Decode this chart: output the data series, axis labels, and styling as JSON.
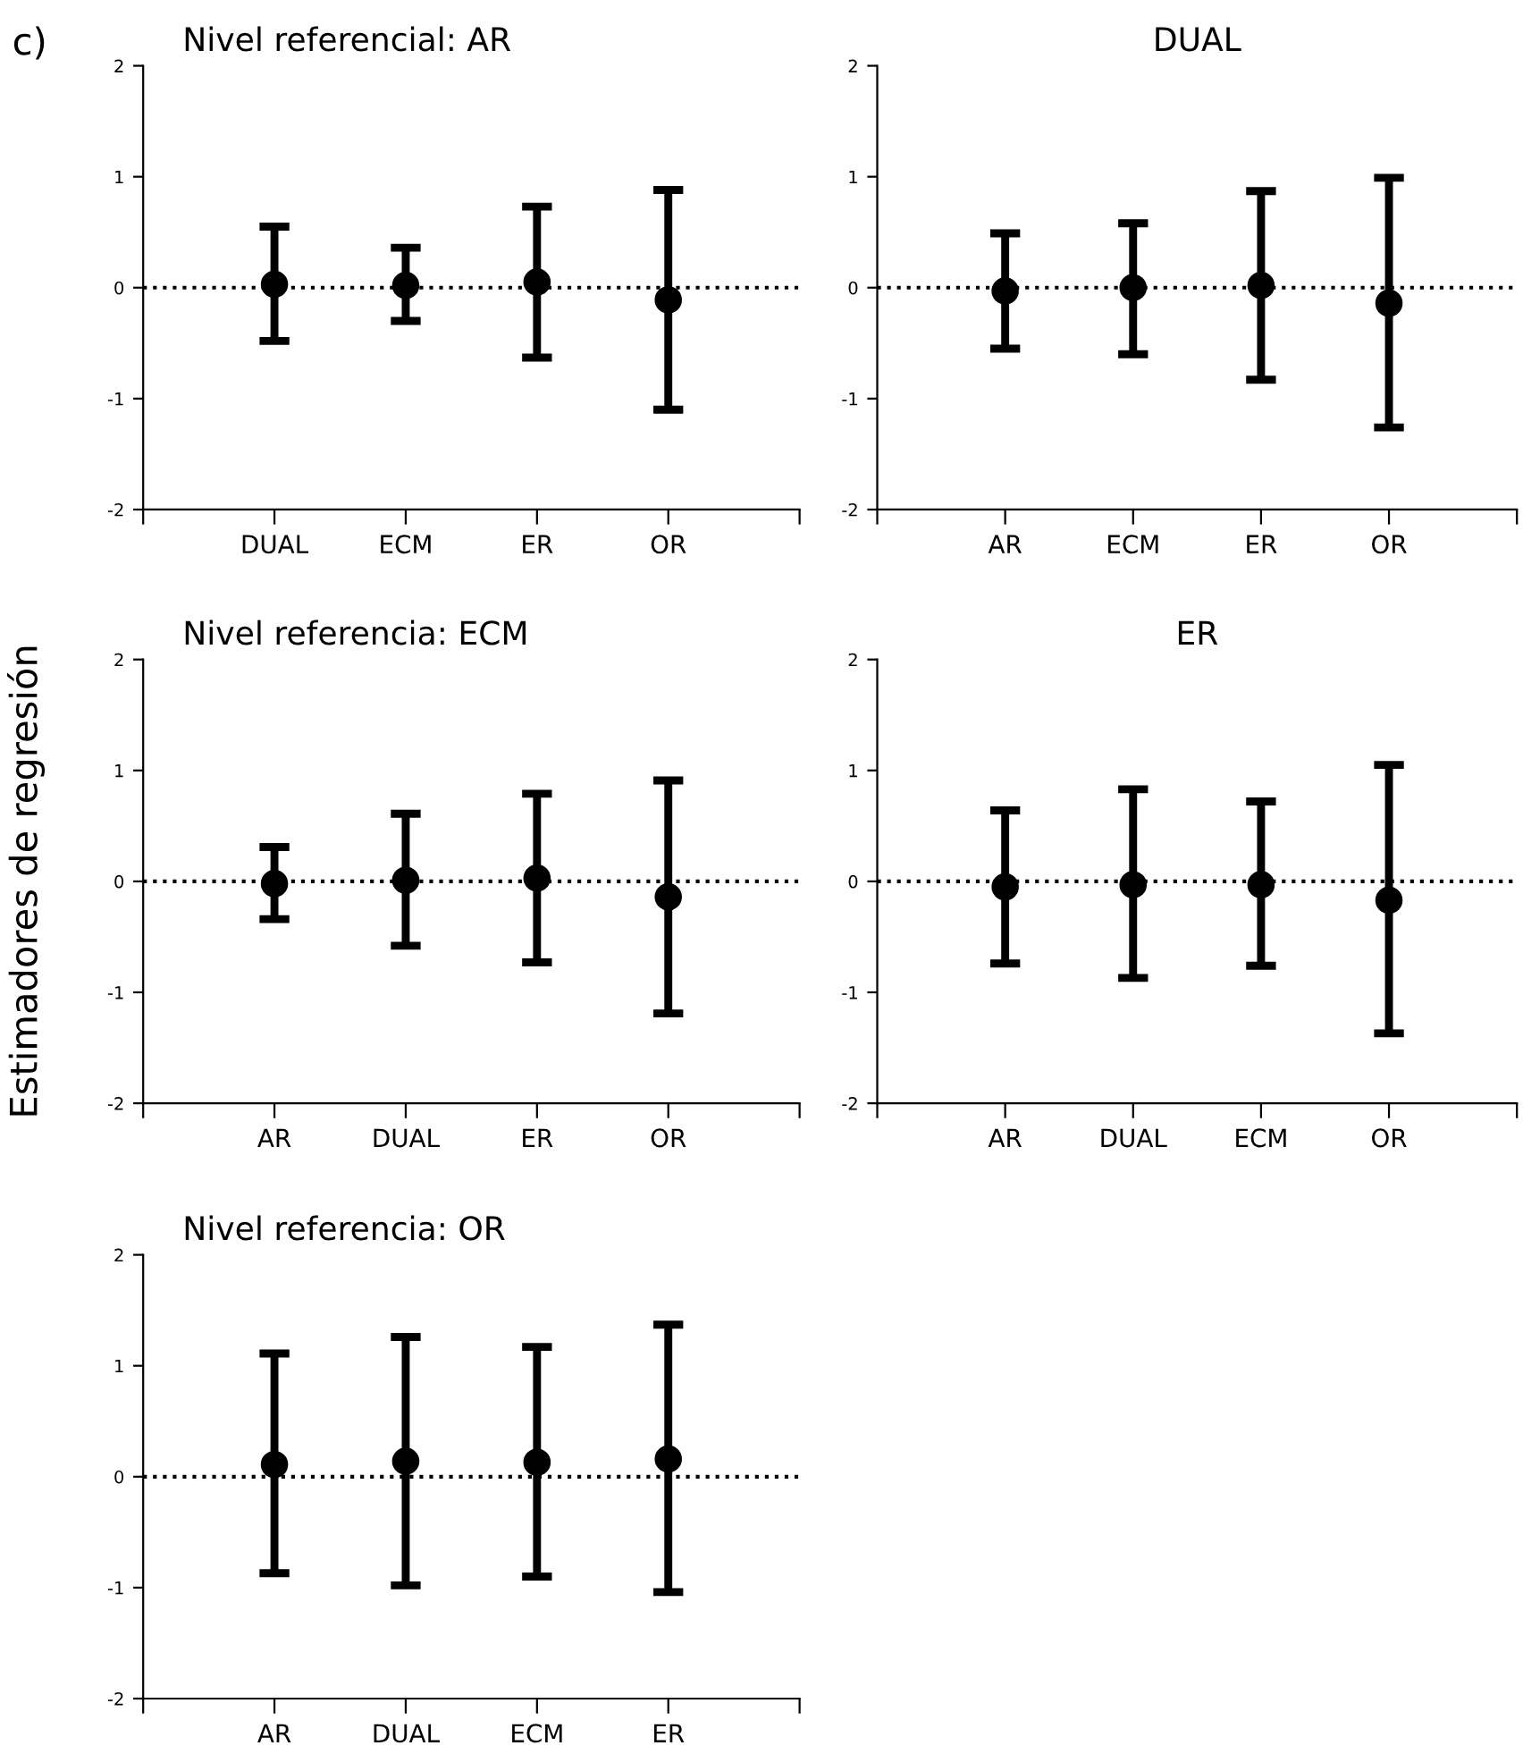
{
  "chart_data": [
    {
      "type": "scatter",
      "title": "Nivel referencial: AR",
      "annotations": [
        "c)"
      ],
      "categories": [
        "DUAL",
        "ECM",
        "ER",
        "OR"
      ],
      "values": [
        0.03,
        0.02,
        0.05,
        -0.11
      ],
      "errors": [
        [
          -0.48,
          0.55
        ],
        [
          -0.3,
          0.36
        ],
        [
          -0.63,
          0.73
        ],
        [
          -1.1,
          0.88
        ]
      ],
      "color": "#000000",
      "marker": "circle",
      "ylim": [
        -2,
        2
      ],
      "yticks": [
        -2,
        -1,
        0,
        1,
        2
      ],
      "ref_lines": [
        {
          "axis": "y",
          "value": 0,
          "line_style": "dotted",
          "color": "#000000"
        }
      ],
      "grid": false,
      "legend": false
    },
    {
      "type": "scatter",
      "title": "DUAL",
      "categories": [
        "AR",
        "ECM",
        "ER",
        "OR"
      ],
      "values": [
        -0.03,
        0.0,
        0.02,
        -0.14
      ],
      "errors": [
        [
          -0.55,
          0.49
        ],
        [
          -0.6,
          0.58
        ],
        [
          -0.83,
          0.87
        ],
        [
          -1.26,
          0.99
        ]
      ],
      "color": "#000000",
      "marker": "circle",
      "ylim": [
        -2,
        2
      ],
      "yticks": [
        -2,
        -1,
        0,
        1,
        2
      ],
      "ref_lines": [
        {
          "axis": "y",
          "value": 0,
          "line_style": "dotted",
          "color": "#000000"
        }
      ],
      "grid": false,
      "legend": false
    },
    {
      "type": "scatter",
      "title": "Nivel referencia: ECM",
      "ylabel": "Estimadores de regresión",
      "categories": [
        "AR",
        "DUAL",
        "ER",
        "OR"
      ],
      "values": [
        -0.02,
        0.01,
        0.03,
        -0.14
      ],
      "errors": [
        [
          -0.34,
          0.31
        ],
        [
          -0.58,
          0.61
        ],
        [
          -0.73,
          0.79
        ],
        [
          -1.19,
          0.91
        ]
      ],
      "color": "#000000",
      "marker": "circle",
      "ylim": [
        -2,
        2
      ],
      "yticks": [
        -2,
        -1,
        0,
        1,
        2
      ],
      "ref_lines": [
        {
          "axis": "y",
          "value": 0,
          "line_style": "dotted",
          "color": "#000000"
        }
      ],
      "grid": false,
      "legend": false
    },
    {
      "type": "scatter",
      "title": "ER",
      "categories": [
        "AR",
        "DUAL",
        "ECM",
        "OR"
      ],
      "values": [
        -0.05,
        -0.03,
        -0.03,
        -0.17
      ],
      "errors": [
        [
          -0.74,
          0.64
        ],
        [
          -0.87,
          0.83
        ],
        [
          -0.76,
          0.72
        ],
        [
          -1.37,
          1.05
        ]
      ],
      "color": "#000000",
      "marker": "circle",
      "ylim": [
        -2,
        2
      ],
      "yticks": [
        -2,
        -1,
        0,
        1,
        2
      ],
      "ref_lines": [
        {
          "axis": "y",
          "value": 0,
          "line_style": "dotted",
          "color": "#000000"
        }
      ],
      "grid": false,
      "legend": false
    },
    {
      "type": "scatter",
      "title": "Nivel referencia: OR",
      "categories": [
        "AR",
        "DUAL",
        "ECM",
        "ER"
      ],
      "values": [
        0.11,
        0.14,
        0.13,
        0.16
      ],
      "errors": [
        [
          -0.87,
          1.11
        ],
        [
          -0.98,
          1.26
        ],
        [
          -0.9,
          1.17
        ],
        [
          -1.04,
          1.37
        ]
      ],
      "color": "#000000",
      "marker": "circle",
      "ylim": [
        -2,
        2
      ],
      "yticks": [
        -2,
        -1,
        0,
        1,
        2
      ],
      "ref_lines": [
        {
          "axis": "y",
          "value": 0,
          "line_style": "dotted",
          "color": "#000000"
        }
      ],
      "grid": false,
      "legend": false
    }
  ]
}
